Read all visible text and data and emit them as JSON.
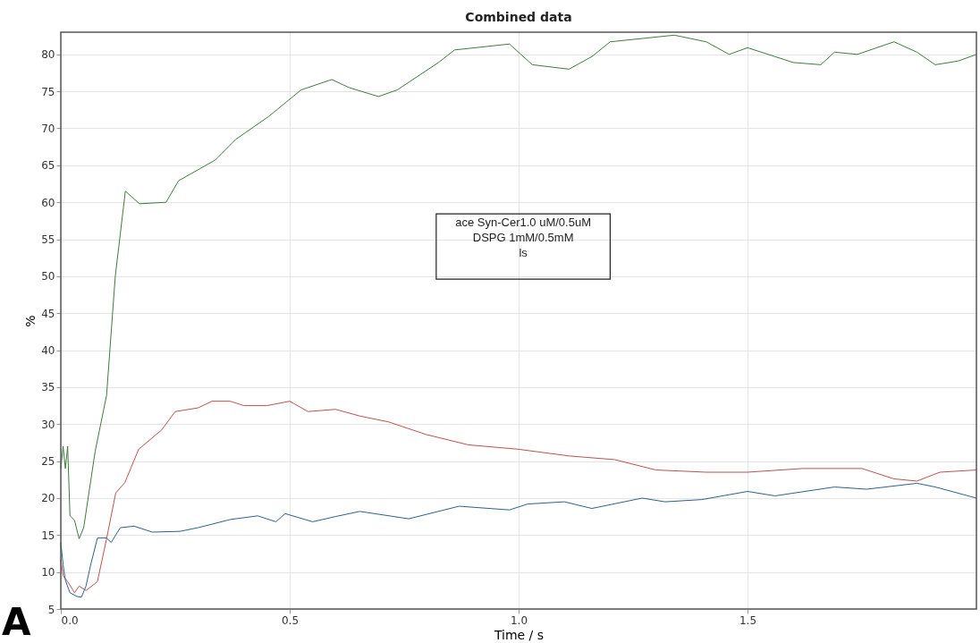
{
  "chart_data": {
    "type": "line",
    "title": "Combined data",
    "xlabel": "Time / s",
    "ylabel": "%",
    "xlim": [
      0,
      2
    ],
    "ylim": [
      5,
      83
    ],
    "xticks": [
      {
        "value": 0,
        "label": "0.0"
      },
      {
        "value": 0.5,
        "label": "0.5"
      },
      {
        "value": 1,
        "label": "1.0"
      },
      {
        "value": 1.5,
        "label": "1.5"
      }
    ],
    "yticks": [
      5,
      10,
      15,
      20,
      25,
      30,
      35,
      40,
      45,
      50,
      55,
      60,
      65,
      70,
      75,
      80
    ],
    "grid": true,
    "legend": false,
    "marker": "none",
    "line_style": "solid",
    "annotations": [
      "ace Syn-Cer1.0 uM/0.5uM",
      "DSPG 1mM/0.5mM",
      "ls",
      "A"
    ],
    "series": [
      {
        "color": "#3f7a3f",
        "x": [
          0,
          0.005,
          0.01,
          0.015,
          0.02,
          0.03,
          0.04,
          0.05,
          0.075,
          0.1,
          0.119,
          0.141,
          0.172,
          0.23,
          0.257,
          0.337,
          0.382,
          0.454,
          0.525,
          0.592,
          0.63,
          0.694,
          0.735,
          0.825,
          0.86,
          0.98,
          1.03,
          1.11,
          1.16,
          1.2,
          1.34,
          1.41,
          1.46,
          1.5,
          1.6,
          1.66,
          1.69,
          1.74,
          1.82,
          1.87,
          1.91,
          1.96,
          2.0
        ],
        "values": [
          24,
          27,
          24,
          27,
          17.6,
          17,
          14.5,
          16,
          26.3,
          33.9,
          50,
          61.5,
          59.8,
          60,
          62.9,
          65.7,
          68.5,
          71.6,
          75.2,
          76.6,
          75.5,
          74.3,
          75.2,
          78.9,
          80.6,
          81.4,
          78.6,
          78,
          79.7,
          81.7,
          82.6,
          81.7,
          80,
          80.9,
          78.9,
          78.6,
          80.3,
          80,
          81.7,
          80.3,
          78.6,
          79.1,
          80
        ]
      },
      {
        "color": "#c0504d",
        "x": [
          0,
          0.005,
          0.015,
          0.03,
          0.04,
          0.055,
          0.08,
          0.1,
          0.12,
          0.14,
          0.17,
          0.22,
          0.25,
          0.3,
          0.33,
          0.37,
          0.4,
          0.45,
          0.5,
          0.54,
          0.6,
          0.653,
          0.716,
          0.798,
          0.89,
          1.0,
          1.11,
          1.21,
          1.3,
          1.41,
          1.5,
          1.62,
          1.75,
          1.82,
          1.87,
          1.92,
          2.0
        ],
        "values": [
          11.7,
          9.5,
          8.7,
          7.2,
          8.1,
          7.5,
          8.7,
          14.5,
          20.7,
          22.1,
          26.6,
          29.2,
          31.7,
          32.2,
          33.1,
          33.1,
          32.5,
          32.5,
          33.1,
          31.7,
          32,
          31.1,
          30.3,
          28.6,
          27.2,
          26.6,
          25.7,
          25.2,
          23.8,
          23.5,
          23.5,
          24,
          24,
          22.6,
          22.3,
          23.5,
          23.8
        ]
      },
      {
        "color": "#2f5f8f",
        "x": [
          0,
          0.005,
          0.01,
          0.02,
          0.035,
          0.045,
          0.055,
          0.065,
          0.08,
          0.1,
          0.11,
          0.13,
          0.16,
          0.2,
          0.26,
          0.3,
          0.37,
          0.43,
          0.47,
          0.49,
          0.55,
          0.6,
          0.653,
          0.76,
          0.87,
          0.98,
          1.02,
          1.1,
          1.16,
          1.27,
          1.32,
          1.4,
          1.5,
          1.56,
          1.69,
          1.76,
          1.87,
          1.91,
          2.0
        ],
        "values": [
          14,
          11,
          8.9,
          7.2,
          6.7,
          6.6,
          8.1,
          10.9,
          14.6,
          14.6,
          14,
          16,
          16.2,
          15.4,
          15.5,
          16,
          17.1,
          17.6,
          16.8,
          17.9,
          16.8,
          17.5,
          18.2,
          17.2,
          18.9,
          18.4,
          19.2,
          19.5,
          18.6,
          20,
          19.5,
          19.8,
          20.9,
          20.3,
          21.5,
          21.2,
          22,
          21.5,
          20
        ]
      }
    ]
  }
}
